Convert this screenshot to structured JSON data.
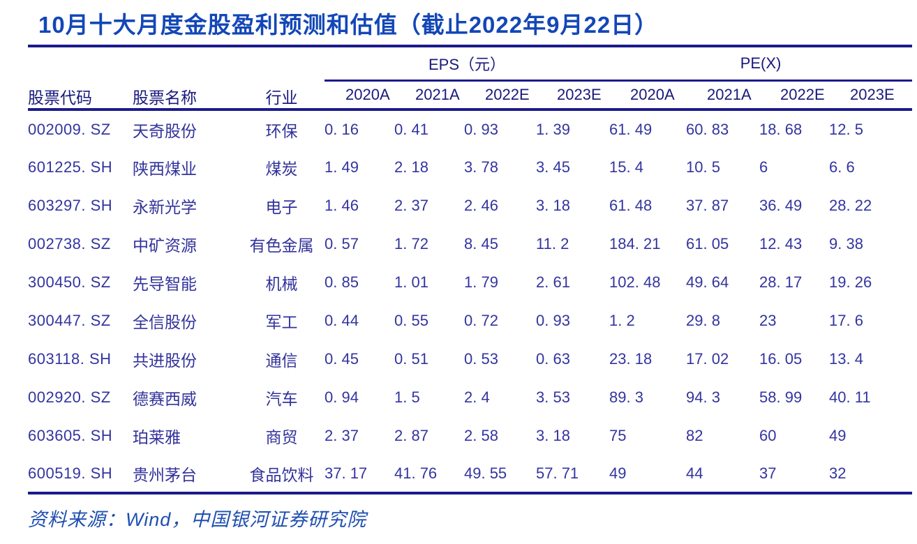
{
  "title": "10月十大月度金股盈利预测和估值（截止2022年9月22日）",
  "source_note": "资料来源：Wind，中国银河证券研究院",
  "colors": {
    "title_blue": "#1347b7",
    "rule_navy": "#1b1b8c",
    "header_navy": "#19197d",
    "data_indigo": "#3334a0",
    "source_blue": "#1e4fb0",
    "background": "#ffffff"
  },
  "table": {
    "col_headers": {
      "code": "股票代码",
      "name": "股票名称",
      "industry": "行业",
      "eps_group": "EPS（元）",
      "pe_group": "PE(X)",
      "years": [
        "2020A",
        "2021A",
        "2022E",
        "2023E"
      ]
    },
    "rows": [
      {
        "code": "002009. SZ",
        "name": "天奇股份",
        "industry": "环保",
        "eps": [
          "0. 16",
          "0. 41",
          "0. 93",
          "1. 39"
        ],
        "pe": [
          "61. 49",
          "60. 83",
          "18. 68",
          "12. 5"
        ]
      },
      {
        "code": "601225. SH",
        "name": "陕西煤业",
        "industry": "煤炭",
        "eps": [
          "1. 49",
          "2. 18",
          "3. 78",
          "3. 45"
        ],
        "pe": [
          "15. 4",
          "10. 5",
          "6",
          "6. 6"
        ]
      },
      {
        "code": "603297. SH",
        "name": "永新光学",
        "industry": "电子",
        "eps": [
          "1. 46",
          "2. 37",
          "2. 46",
          "3. 18"
        ],
        "pe": [
          "61. 48",
          "37. 87",
          "36. 49",
          "28. 22"
        ]
      },
      {
        "code": "002738. SZ",
        "name": "中矿资源",
        "industry": "有色金属",
        "eps": [
          "0. 57",
          "1. 72",
          "8. 45",
          "11. 2"
        ],
        "pe": [
          "184. 21",
          "61. 05",
          "12. 43",
          "9. 38"
        ]
      },
      {
        "code": "300450. SZ",
        "name": "先导智能",
        "industry": "机械",
        "eps": [
          "0. 85",
          "1. 01",
          "1. 79",
          "2. 61"
        ],
        "pe": [
          "102. 48",
          "49. 64",
          "28. 17",
          "19. 26"
        ]
      },
      {
        "code": "300447. SZ",
        "name": "全信股份",
        "industry": "军工",
        "eps": [
          "0. 44",
          "0. 55",
          "0. 72",
          "0. 93"
        ],
        "pe": [
          "1. 2",
          "29. 8",
          "23",
          "17. 6"
        ]
      },
      {
        "code": "603118. SH",
        "name": "共进股份",
        "industry": "通信",
        "eps": [
          "0. 45",
          "0. 51",
          "0. 53",
          "0. 63"
        ],
        "pe": [
          "23. 18",
          "17. 02",
          "16. 05",
          "13. 4"
        ]
      },
      {
        "code": "002920. SZ",
        "name": "德赛西威",
        "industry": "汽车",
        "eps": [
          "0. 94",
          "1. 5",
          "2. 4",
          "3. 53"
        ],
        "pe": [
          "89. 3",
          "94. 3",
          "58. 99",
          "40. 11"
        ]
      },
      {
        "code": "603605. SH",
        "name": "珀莱雅",
        "industry": "商贸",
        "eps": [
          "2. 37",
          "2. 87",
          "2. 58",
          "3. 18"
        ],
        "pe": [
          "75",
          "82",
          "60",
          "49"
        ]
      },
      {
        "code": "600519. SH",
        "name": "贵州茅台",
        "industry": "食品饮料",
        "eps": [
          "37. 17",
          "41. 76",
          "49. 55",
          "57. 71"
        ],
        "pe": [
          "49",
          "44",
          "37",
          "32"
        ]
      }
    ]
  }
}
